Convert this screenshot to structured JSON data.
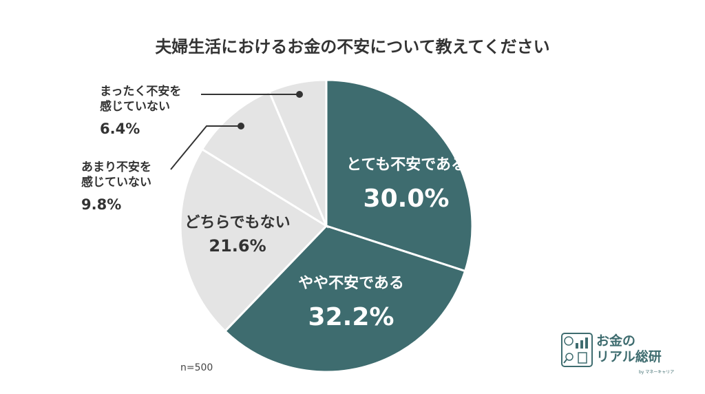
{
  "chart_data": {
    "type": "pie",
    "title": "夫婦生活におけるお金の不安について教えてください",
    "categories": [
      "とても不安である",
      "やや不安である",
      "どちらでもない",
      "あまり不安を\n感じていない",
      "まったく不安を\n感じていない"
    ],
    "values": [
      30.0,
      32.2,
      21.6,
      9.8,
      6.4
    ],
    "value_labels": [
      "30.0%",
      "32.2%",
      "21.6%",
      "9.8%",
      "6.4%"
    ],
    "colors": [
      "#3e6c6f",
      "#3e6c6f",
      "#e4e4e4",
      "#e4e4e4",
      "#e4e4e4"
    ],
    "note": "n=500"
  },
  "logo": {
    "title": "お金の\nリアル総研",
    "byline": "by マネーキャリア"
  }
}
